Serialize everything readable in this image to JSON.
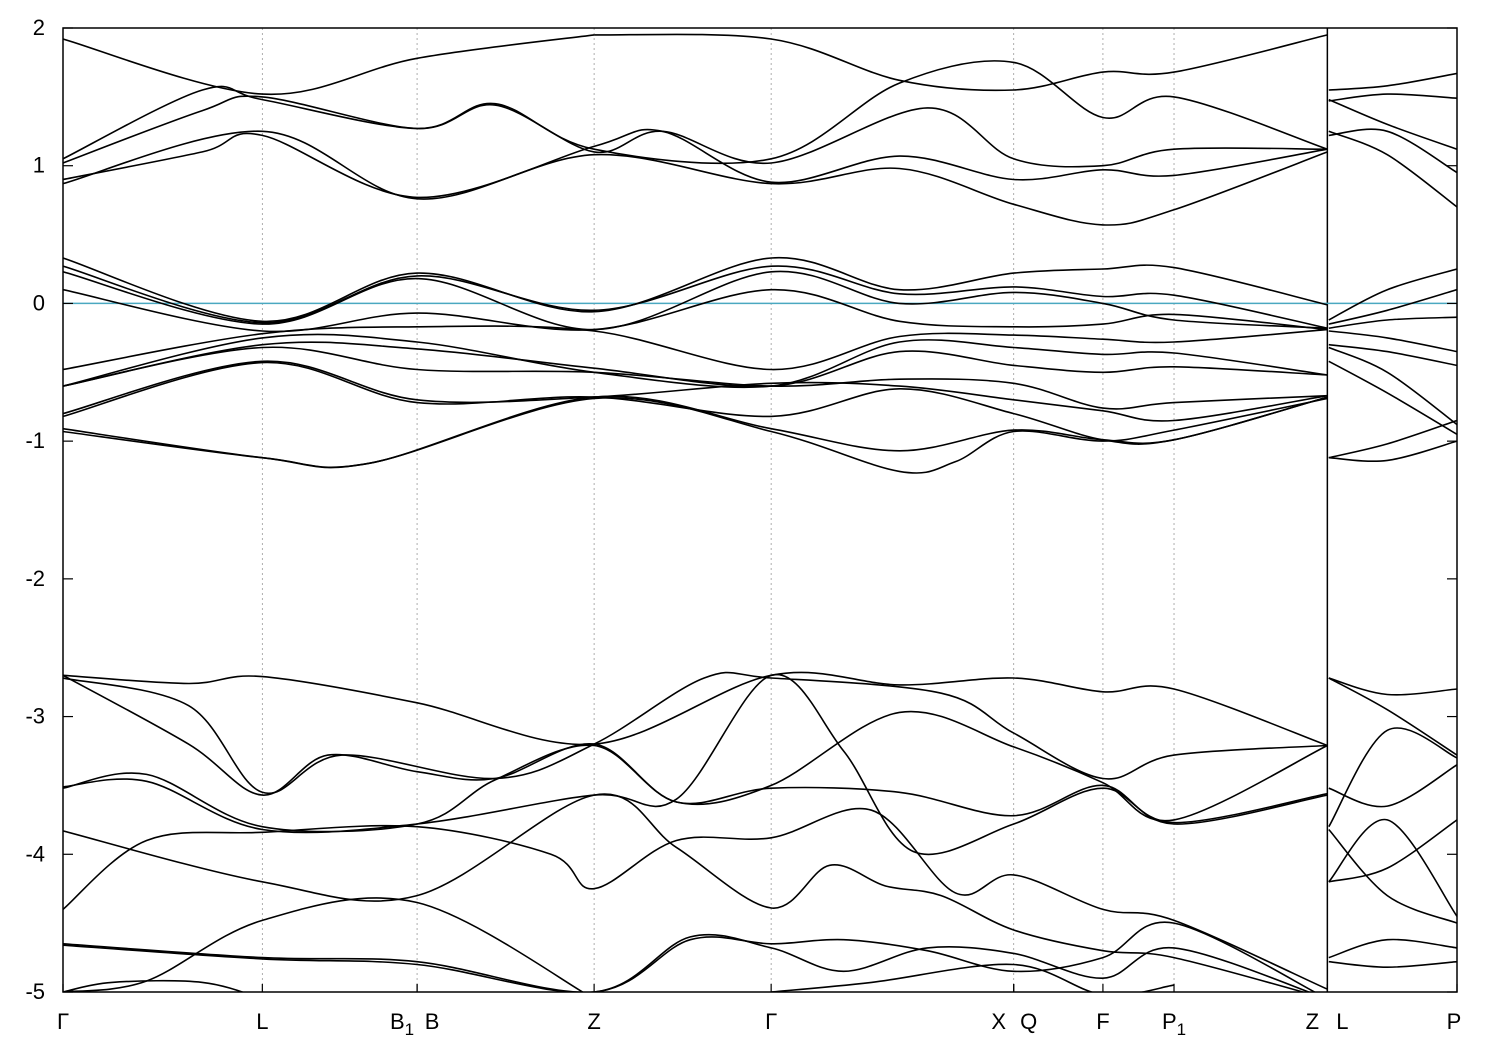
{
  "chart_data": {
    "type": "line",
    "title": "",
    "xlabel": "",
    "ylabel": "",
    "ylim": [
      -5,
      2
    ],
    "yticks": [
      -5,
      -4,
      -3,
      -2,
      -1,
      0,
      1,
      2
    ],
    "ytick_labels": [
      "-5",
      "-4",
      "-3",
      "-2",
      "-1",
      "0",
      "1",
      "2"
    ],
    "grid": "dashed vertical lines at high-symmetry points",
    "fermi_level": {
      "value": 0,
      "color": "#4aa8c0"
    },
    "band_color": "#000000",
    "kpoints": [
      {
        "x": 0.0,
        "label": "Γ"
      },
      {
        "x": 0.143,
        "label": "L"
      },
      {
        "x": 0.254,
        "label": "B",
        "subscript": "1"
      },
      {
        "x": 0.254,
        "label": "B"
      },
      {
        "x": 0.381,
        "label": "Z"
      },
      {
        "x": 0.508,
        "label": "Γ"
      },
      {
        "x": 0.682,
        "label": "X"
      },
      {
        "x": 0.682,
        "label": "Q"
      },
      {
        "x": 0.746,
        "label": "F"
      },
      {
        "x": 0.797,
        "label": "P",
        "subscript": "1"
      },
      {
        "x": 0.907,
        "label": "Z"
      },
      {
        "x": 0.907,
        "label": "L"
      },
      {
        "x": 1.0,
        "label": "P"
      }
    ],
    "bands": [
      {
        "x": [
          0,
          0.143,
          0.254,
          0.381
        ],
        "y": [
          1.92,
          1.52,
          1.78,
          1.95
        ]
      },
      {
        "x": [
          0.381,
          0.508,
          0.6,
          0.682,
          0.746,
          0.797,
          0.907
        ],
        "y": [
          1.95,
          1.92,
          1.62,
          1.55,
          1.68,
          1.68,
          1.95
        ]
      },
      {
        "x": [
          0,
          0.1,
          0.143,
          0.254,
          0.31,
          0.381,
          0.508,
          0.6,
          0.682,
          0.746,
          0.797,
          0.907
        ],
        "y": [
          1.05,
          1.55,
          1.48,
          1.27,
          1.45,
          1.12,
          1.05,
          1.6,
          1.75,
          1.35,
          1.5,
          1.12
        ]
      },
      {
        "x": [
          0,
          0.1,
          0.143,
          0.254,
          0.31,
          0.381,
          0.43,
          0.508,
          0.62,
          0.682,
          0.746,
          0.797,
          0.907
        ],
        "y": [
          1.02,
          1.4,
          1.5,
          1.27,
          1.44,
          1.1,
          1.25,
          1.02,
          1.42,
          1.05,
          1.0,
          1.12,
          1.12
        ]
      },
      {
        "x": [
          0,
          0.1,
          0.143,
          0.254,
          0.381,
          0.43,
          0.508,
          0.6,
          0.682,
          0.746,
          0.797,
          0.907
        ],
        "y": [
          0.9,
          1.1,
          1.22,
          0.77,
          1.14,
          1.25,
          0.88,
          1.07,
          0.9,
          0.97,
          0.93,
          1.12
        ]
      },
      {
        "x": [
          0,
          0.143,
          0.254,
          0.381,
          0.508,
          0.6,
          0.682,
          0.746,
          0.797,
          0.907
        ],
        "y": [
          0.87,
          1.25,
          0.76,
          1.08,
          0.87,
          0.98,
          0.72,
          0.57,
          0.68,
          1.1
        ]
      },
      {
        "x": [
          0.908,
          0.95,
          1.0
        ],
        "y": [
          1.55,
          1.58,
          1.67
        ]
      },
      {
        "x": [
          0.908,
          0.95,
          1.0
        ],
        "y": [
          1.48,
          1.3,
          1.12
        ]
      },
      {
        "x": [
          0.908,
          0.95,
          1.0
        ],
        "y": [
          1.47,
          1.52,
          1.49
        ]
      },
      {
        "x": [
          0.908,
          0.95,
          1.0
        ],
        "y": [
          1.25,
          1.08,
          0.7
        ]
      },
      {
        "x": [
          0.908,
          0.95,
          1.0
        ],
        "y": [
          1.22,
          1.25,
          0.95
        ]
      },
      {
        "x": [
          0,
          0.143,
          0.254,
          0.381,
          0.508,
          0.6,
          0.682,
          0.746,
          0.797,
          0.907
        ],
        "y": [
          0.33,
          -0.13,
          0.22,
          -0.06,
          0.33,
          0.1,
          0.22,
          0.25,
          0.26,
          -0.01
        ]
      },
      {
        "x": [
          0,
          0.143,
          0.254,
          0.381,
          0.508,
          0.6,
          0.682,
          0.746,
          0.797,
          0.907
        ],
        "y": [
          0.27,
          -0.14,
          0.2,
          -0.05,
          0.27,
          0.07,
          0.12,
          0.05,
          0.06,
          -0.18
        ]
      },
      {
        "x": [
          0,
          0.143,
          0.254,
          0.381,
          0.508,
          0.6,
          0.682,
          0.746,
          0.797,
          0.907
        ],
        "y": [
          0.23,
          -0.15,
          0.18,
          -0.19,
          0.23,
          0.0,
          0.08,
          0.0,
          -0.12,
          -0.18
        ]
      },
      {
        "x": [
          0,
          0.143,
          0.254,
          0.381,
          0.508,
          0.6,
          0.682,
          0.746,
          0.797,
          0.907
        ],
        "y": [
          0.1,
          -0.2,
          -0.07,
          -0.19,
          0.1,
          -0.13,
          -0.17,
          -0.15,
          -0.08,
          -0.19
        ]
      },
      {
        "x": [
          0,
          0.143,
          0.254,
          0.381,
          0.508,
          0.6,
          0.682,
          0.746,
          0.797,
          0.907
        ],
        "y": [
          -0.48,
          -0.22,
          -0.17,
          -0.2,
          -0.48,
          -0.24,
          -0.23,
          -0.26,
          -0.28,
          -0.19
        ]
      },
      {
        "x": [
          0,
          0.143,
          0.254,
          0.381,
          0.508,
          0.6,
          0.682,
          0.746,
          0.797,
          0.907
        ],
        "y": [
          -0.6,
          -0.25,
          -0.28,
          -0.5,
          -0.6,
          -0.28,
          -0.32,
          -0.37,
          -0.36,
          -0.52
        ]
      },
      {
        "x": [
          0,
          0.143,
          0.254,
          0.381,
          0.508,
          0.6,
          0.682,
          0.746,
          0.797,
          0.907
        ],
        "y": [
          -0.6,
          -0.3,
          -0.33,
          -0.47,
          -0.6,
          -0.35,
          -0.45,
          -0.5,
          -0.46,
          -0.52
        ]
      },
      {
        "x": [
          0,
          0.143,
          0.254,
          0.381,
          0.508,
          0.6,
          0.682,
          0.746,
          0.797,
          0.907
        ],
        "y": [
          -0.6,
          -0.32,
          -0.48,
          -0.5,
          -0.6,
          -0.55,
          -0.58,
          -0.76,
          -0.72,
          -0.67
        ]
      },
      {
        "x": [
          0,
          0.143,
          0.254,
          0.381,
          0.508,
          0.6,
          0.682,
          0.746,
          0.797,
          0.907
        ],
        "y": [
          -0.8,
          -0.42,
          -0.7,
          -0.68,
          -0.58,
          -0.6,
          -0.7,
          -0.78,
          -0.85,
          -0.67
        ]
      },
      {
        "x": [
          0,
          0.143,
          0.254,
          0.381,
          0.508,
          0.6,
          0.682,
          0.746,
          0.797,
          0.907
        ],
        "y": [
          -0.82,
          -0.43,
          -0.72,
          -0.68,
          -0.82,
          -0.62,
          -0.8,
          -0.99,
          -0.99,
          -0.68
        ]
      },
      {
        "x": [
          0,
          0.143,
          0.22,
          0.381,
          0.508,
          0.6,
          0.682,
          0.746,
          0.797,
          0.907
        ],
        "y": [
          -0.91,
          -1.12,
          -1.16,
          -0.68,
          -0.91,
          -1.07,
          -0.92,
          -0.99,
          -0.99,
          -0.68
        ]
      },
      {
        "x": [
          0,
          0.143,
          0.22,
          0.381,
          0.508,
          0.6,
          0.64,
          0.682,
          0.746,
          0.797,
          0.907
        ],
        "y": [
          -0.93,
          -1.12,
          -1.16,
          -0.69,
          -0.93,
          -1.22,
          -1.15,
          -0.93,
          -1.0,
          -0.92,
          -0.69
        ]
      },
      {
        "x": [
          0.908,
          0.95,
          1.0
        ],
        "y": [
          -0.12,
          0.1,
          0.25
        ]
      },
      {
        "x": [
          0.908,
          0.95,
          1.0
        ],
        "y": [
          -0.15,
          -0.05,
          0.1
        ]
      },
      {
        "x": [
          0.908,
          0.95,
          1.0
        ],
        "y": [
          -0.18,
          -0.12,
          -0.1
        ]
      },
      {
        "x": [
          0.908,
          0.95,
          1.0
        ],
        "y": [
          -0.2,
          -0.25,
          -0.35
        ]
      },
      {
        "x": [
          0.908,
          0.95,
          1.0
        ],
        "y": [
          -0.3,
          -0.35,
          -0.45
        ]
      },
      {
        "x": [
          0.908,
          0.95,
          1.0
        ],
        "y": [
          -0.32,
          -0.5,
          -0.88
        ]
      },
      {
        "x": [
          0.908,
          0.95,
          1.0
        ],
        "y": [
          -0.42,
          -0.65,
          -0.95
        ]
      },
      {
        "x": [
          0.908,
          0.95,
          1.0
        ],
        "y": [
          -1.12,
          -1.02,
          -0.85
        ]
      },
      {
        "x": [
          0.908,
          0.95,
          1.0
        ],
        "y": [
          -1.12,
          -1.14,
          -1.0
        ]
      },
      {
        "x": [
          0,
          0.09,
          0.143,
          0.254,
          0.381,
          0.508,
          0.6,
          0.682,
          0.746,
          0.797,
          0.907
        ],
        "y": [
          -2.7,
          -2.76,
          -2.71,
          -2.9,
          -3.2,
          -2.7,
          -2.77,
          -2.72,
          -2.82,
          -2.8,
          -3.21
        ]
      },
      {
        "x": [
          0,
          0.09,
          0.143,
          0.2,
          0.31,
          0.381,
          0.46,
          0.508,
          0.63,
          0.682,
          0.746,
          0.797,
          0.907
        ],
        "y": [
          -2.72,
          -2.92,
          -3.55,
          -3.28,
          -3.45,
          -3.2,
          -2.72,
          -2.72,
          -2.83,
          -3.12,
          -3.45,
          -3.28,
          -3.21
        ]
      },
      {
        "x": [
          0,
          0.09,
          0.143,
          0.19,
          0.254,
          0.31,
          0.381,
          0.44,
          0.508,
          0.6,
          0.682,
          0.746,
          0.797,
          0.907
        ],
        "y": [
          -2.7,
          -3.2,
          -3.57,
          -3.28,
          -3.4,
          -3.45,
          -3.2,
          -3.62,
          -3.5,
          -2.97,
          -3.22,
          -3.48,
          -3.75,
          -3.21
        ]
      },
      {
        "x": [
          0,
          0.06,
          0.143,
          0.254,
          0.31,
          0.381,
          0.44,
          0.508,
          0.6,
          0.682,
          0.746,
          0.797,
          0.907
        ],
        "y": [
          -3.52,
          -3.42,
          -3.8,
          -3.78,
          -3.46,
          -3.21,
          -3.62,
          -3.52,
          -3.55,
          -3.72,
          -3.5,
          -3.78,
          -3.57
        ]
      },
      {
        "x": [
          0,
          0.06,
          0.143,
          0.254,
          0.381,
          0.44,
          0.508,
          0.56,
          0.61,
          0.682,
          0.746,
          0.797,
          0.907
        ],
        "y": [
          -3.51,
          -3.47,
          -3.82,
          -3.78,
          -3.57,
          -3.6,
          -2.7,
          -3.25,
          -3.98,
          -3.78,
          -3.52,
          -3.77,
          -3.56
        ]
      },
      {
        "x": [
          0,
          0.143,
          0.254,
          0.381,
          0.44,
          0.508,
          0.55,
          0.59,
          0.63,
          0.682,
          0.746,
          0.797,
          0.907
        ],
        "y": [
          -3.83,
          -4.2,
          -4.3,
          -3.57,
          -3.95,
          -4.39,
          -4.08,
          -4.23,
          -4.3,
          -4.55,
          -4.7,
          -4.75,
          -5.05
        ]
      },
      {
        "x": [
          0,
          0.06,
          0.143,
          0.254,
          0.35,
          0.381,
          0.44,
          0.508,
          0.58,
          0.64,
          0.682,
          0.746,
          0.797,
          0.907
        ],
        "y": [
          -4.4,
          -3.9,
          -3.84,
          -3.8,
          -4.0,
          -4.25,
          -3.9,
          -3.88,
          -3.68,
          -4.28,
          -4.15,
          -4.4,
          -4.48,
          -4.98
        ]
      },
      {
        "x": [
          0,
          0.143,
          0.254,
          0.381,
          0.45,
          0.508,
          0.56,
          0.62,
          0.682,
          0.746,
          0.797,
          0.907
        ],
        "y": [
          -4.65,
          -4.75,
          -4.78,
          -5.0,
          -4.62,
          -4.65,
          -4.62,
          -4.7,
          -4.85,
          -4.75,
          -4.5,
          -5.05
        ]
      },
      {
        "x": [
          0,
          0.143,
          0.254,
          0.381,
          0.45,
          0.508,
          0.56,
          0.62,
          0.682,
          0.746,
          0.797,
          0.907
        ],
        "y": [
          -4.66,
          -4.76,
          -4.8,
          -5.0,
          -4.6,
          -4.68,
          -4.85,
          -4.68,
          -4.72,
          -4.9,
          -4.68,
          -5.05
        ]
      },
      {
        "x": [
          0,
          0.035,
          0.1,
          0.143
        ],
        "y": [
          -5.0,
          -4.93,
          -4.93,
          -5.05
        ]
      },
      {
        "x": [
          0,
          0.06,
          0.143,
          0.254,
          0.381
        ],
        "y": [
          -5.0,
          -4.92,
          -4.48,
          -4.35,
          -5.05
        ]
      },
      {
        "x": [
          0.508,
          0.58,
          0.682,
          0.746,
          0.797
        ],
        "y": [
          -5.0,
          -4.93,
          -4.8,
          -5.02,
          -4.95
        ]
      },
      {
        "x": [
          0.908,
          0.95,
          1.0
        ],
        "y": [
          -2.72,
          -2.84,
          -2.8
        ]
      },
      {
        "x": [
          0.908,
          0.95,
          1.0
        ],
        "y": [
          -2.72,
          -2.95,
          -3.28
        ]
      },
      {
        "x": [
          0.908,
          0.95,
          1.0
        ],
        "y": [
          -3.52,
          -3.65,
          -3.35
        ]
      },
      {
        "x": [
          0.908,
          0.95,
          1.0
        ],
        "y": [
          -3.8,
          -3.1,
          -3.3
        ]
      },
      {
        "x": [
          0.908,
          0.95,
          1.0
        ],
        "y": [
          -3.82,
          -4.3,
          -4.5
        ]
      },
      {
        "x": [
          0.908,
          0.95,
          1.0
        ],
        "y": [
          -4.2,
          -3.75,
          -4.45
        ]
      },
      {
        "x": [
          0.908,
          0.95,
          1.0
        ],
        "y": [
          -4.2,
          -4.1,
          -3.75
        ]
      },
      {
        "x": [
          0.908,
          0.95,
          1.0
        ],
        "y": [
          -4.75,
          -4.62,
          -4.68
        ]
      },
      {
        "x": [
          0.908,
          0.95,
          1.0
        ],
        "y": [
          -4.78,
          -4.82,
          -4.78
        ]
      }
    ]
  }
}
